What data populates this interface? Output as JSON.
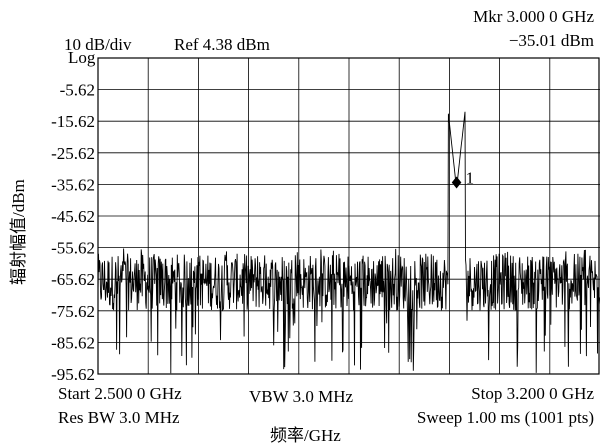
{
  "header": {
    "scale": "10 dB/div",
    "ref_level": "Ref 4.38 dBm",
    "marker_freq": "Mkr 3.000 0 GHz",
    "marker_value": "−35.01 dBm"
  },
  "chart_data": {
    "type": "line",
    "scale_mode": "Log",
    "ylabel": "辐射幅值/dBm",
    "xlabel": "频率/GHz",
    "ylim": [
      -95.62,
      4.38
    ],
    "xlim": [
      2.5,
      3.2
    ],
    "yticks": [
      "-5.62",
      "-15.62",
      "-25.62",
      "-35.62",
      "-45.62",
      "-55.62",
      "-65.62",
      "-75.62",
      "-85.62",
      "-95.62"
    ],
    "grid": true,
    "noise_floor": -66.5,
    "noise_band": [
      -58,
      -76
    ],
    "marker": {
      "label": "1",
      "x": 3.0,
      "y": -35.01
    },
    "points": 1001,
    "color": "#000000"
  },
  "footer": {
    "start": "Start 2.500 0 GHz",
    "vbw": "VBW 3.0 MHz",
    "stop": "Stop 3.200 0 GHz",
    "res_bw": "Res BW 3.0 MHz",
    "sweep": "Sweep 1.00 ms (1001 pts)"
  }
}
